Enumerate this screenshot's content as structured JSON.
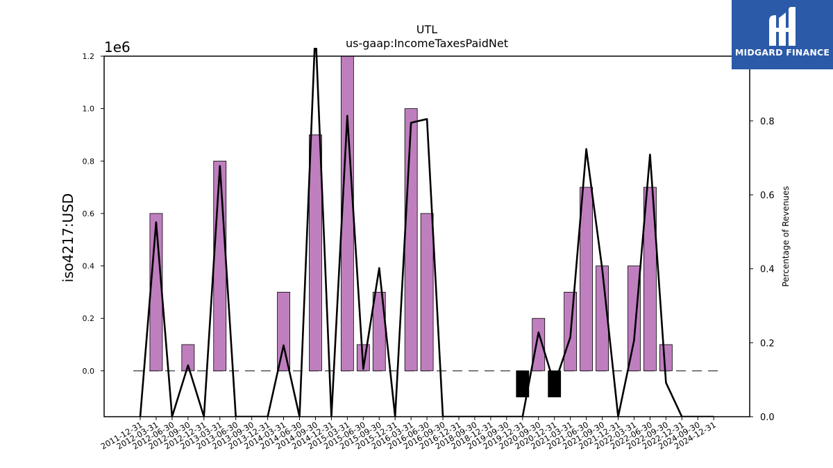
{
  "title": "UTL",
  "subtitle": "us-gaap:IncomeTaxesPaidNet",
  "logo": {
    "text": "MIDGARD FINANCE",
    "icon": "midgard-logo-icon",
    "bg_color": "#2b5aa8"
  },
  "chart_data": {
    "type": "bar",
    "categories": [
      "2011-12-31",
      "2012-03-31",
      "2012-06-30",
      "2012-09-30",
      "2012-12-31",
      "2013-03-31",
      "2013-06-30",
      "2013-09-30",
      "2013-12-31",
      "2014-03-31",
      "2014-06-30",
      "2014-09-30",
      "2014-12-31",
      "2015-03-31",
      "2015-06-30",
      "2015-09-30",
      "2015-12-31",
      "2016-03-31",
      "2016-06-30",
      "2016-09-30",
      "2016-12-31",
      "2018-09-30",
      "2018-12-31",
      "2019-09-30",
      "2019-12-31",
      "2020-09-30",
      "2020-12-31",
      "2021-03-31",
      "2021-06-30",
      "2021-09-30",
      "2021-12-31",
      "2022-03-31",
      "2022-06-30",
      "2022-09-30",
      "2022-12-31",
      "2024-09-30",
      "2024-12-31"
    ],
    "series": [
      {
        "axis": "left",
        "values": [
          0,
          600000,
          0,
          100000,
          0,
          800000,
          0,
          0,
          0,
          300000,
          0,
          900000,
          0,
          1200000,
          100000,
          300000,
          0,
          1000000,
          600000,
          0,
          0,
          0,
          0,
          0,
          -100000,
          200000,
          -100000,
          300000,
          700000,
          400000,
          0,
          400000,
          700000,
          100000,
          0,
          0,
          0
        ],
        "color": "#bf7fbf",
        "negative_color": "#000000"
      },
      {
        "axis": "right",
        "type": "line",
        "values": [
          0,
          0.526,
          0,
          0.139,
          0,
          0.678,
          0,
          0,
          0,
          0.193,
          0,
          1.05,
          0,
          0.814,
          0.129,
          0.402,
          0,
          0.795,
          0.805,
          0,
          0,
          0,
          0,
          0,
          0,
          0.228,
          0.087,
          0.215,
          0.724,
          0.4,
          0,
          0.206,
          0.709,
          0.092,
          0,
          0,
          0
        ],
        "color": "#000000"
      }
    ],
    "ylabel": "iso4217:USD",
    "y_offset_label": "1e6",
    "ylim": [
      -175000,
      1200000
    ],
    "yticks": [
      "0.0",
      "0.2",
      "0.4",
      "0.6",
      "0.8",
      "1.0",
      "1.2"
    ],
    "y2label": "Percentage of Revenues",
    "y2lim": [
      0,
      0.975
    ],
    "y2ticks": [
      "0.0",
      "0.2",
      "0.4",
      "0.6",
      "0.8"
    ],
    "zero_line": "dashed",
    "grid": false
  }
}
